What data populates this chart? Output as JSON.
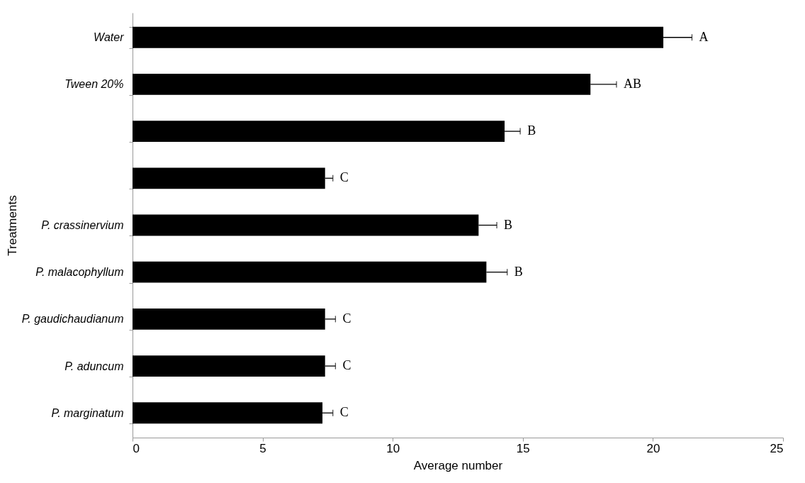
{
  "chart_data": {
    "type": "bar",
    "orientation": "horizontal",
    "xlabel": "Average number",
    "ylabel": "Treatments",
    "categories": [
      "Water",
      "Tween 20%",
      null,
      null,
      "P. crassinervium",
      "P. malacophyllum",
      "P. gaudichaudianum",
      "P. aduncum",
      "P. marginatum"
    ],
    "values": [
      20.4,
      17.6,
      14.3,
      7.4,
      13.3,
      13.6,
      7.4,
      7.4,
      7.3
    ],
    "errors": [
      [
        20.4,
        21.5
      ],
      [
        17.6,
        18.6
      ],
      [
        14.3,
        14.9
      ],
      [
        7.4,
        7.7
      ],
      [
        13.3,
        14.0
      ],
      [
        13.6,
        14.4
      ],
      [
        7.4,
        7.8
      ],
      [
        7.4,
        7.8
      ],
      [
        7.3,
        7.7
      ]
    ],
    "value_labels": [
      "A",
      "AB",
      "B",
      "C",
      "B",
      "B",
      "C",
      "C",
      "C"
    ],
    "color": "#000000",
    "xlim": [
      0,
      25
    ],
    "xticks": [
      0,
      5,
      10,
      15,
      20,
      25
    ],
    "grid": false
  }
}
